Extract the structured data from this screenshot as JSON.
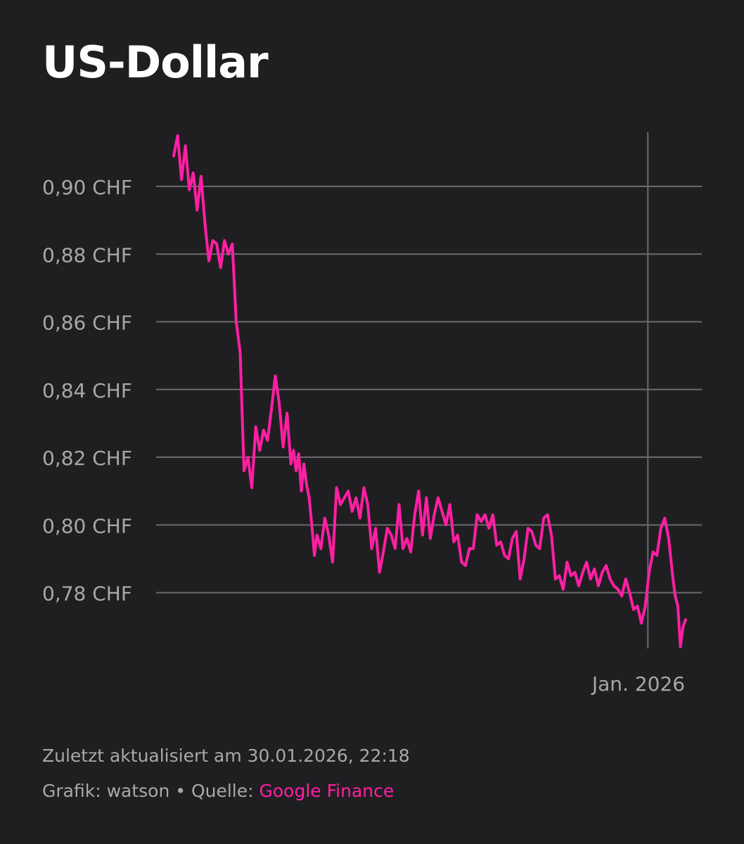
{
  "title": "US-Dollar",
  "footer": {
    "updated": "Zuletzt aktualisiert am 30.01.2026, 22:18",
    "credits_prefix": "Grafik: watson • Quelle: ",
    "source_link": "Google Finance"
  },
  "colors": {
    "background": "#1f1f21",
    "line": "#ff1fa3",
    "grid": "#6a6a6d",
    "muted_text": "#a8a8ab",
    "accent": "#ff1fa3"
  },
  "chart_data": {
    "type": "line",
    "title": "US-Dollar",
    "ylabel": "",
    "xlabel": "",
    "ylim": [
      0.7635,
      0.916
    ],
    "y_ticks": [
      0.9,
      0.88,
      0.86,
      0.84,
      0.82,
      0.8,
      0.78
    ],
    "y_tick_labels": [
      "0,90 CHF",
      "0,88 CHF",
      "0,86 CHF",
      "0,84 CHF",
      "0,82 CHF",
      "0,80 CHF",
      "0,78 CHF"
    ],
    "x_range": [
      "2025-01-02",
      "2026-01-30"
    ],
    "x_marker": {
      "date": "2026-01-01",
      "label": "Jan. 2026"
    },
    "grid": true,
    "series": [
      {
        "dates": [
          "2025-01-02",
          "2025-01-05",
          "2025-01-08",
          "2025-01-11",
          "2025-01-14",
          "2025-01-17",
          "2025-01-20",
          "2025-01-23",
          "2025-01-26",
          "2025-01-29",
          "2025-02-01",
          "2025-02-04",
          "2025-02-07",
          "2025-02-10",
          "2025-02-13",
          "2025-02-16",
          "2025-02-19",
          "2025-02-22",
          "2025-02-25",
          "2025-02-28",
          "2025-03-03",
          "2025-03-06",
          "2025-03-09",
          "2025-03-12",
          "2025-03-15",
          "2025-03-18",
          "2025-03-21",
          "2025-03-24",
          "2025-03-27",
          "2025-03-30",
          "2025-04-02",
          "2025-04-04",
          "2025-04-06",
          "2025-04-08",
          "2025-04-10",
          "2025-04-12",
          "2025-04-14",
          "2025-04-16",
          "2025-04-18",
          "2025-04-20",
          "2025-04-22",
          "2025-04-25",
          "2025-04-28",
          "2025-05-01",
          "2025-05-04",
          "2025-05-07",
          "2025-05-10",
          "2025-05-13",
          "2025-05-16",
          "2025-05-19",
          "2025-05-22",
          "2025-05-25",
          "2025-05-28",
          "2025-05-31",
          "2025-06-03",
          "2025-06-06",
          "2025-06-09",
          "2025-06-12",
          "2025-06-15",
          "2025-06-18",
          "2025-06-21",
          "2025-06-24",
          "2025-06-27",
          "2025-06-30",
          "2025-07-03",
          "2025-07-06",
          "2025-07-09",
          "2025-07-12",
          "2025-07-15",
          "2025-07-18",
          "2025-07-21",
          "2025-07-24",
          "2025-07-27",
          "2025-07-30",
          "2025-08-02",
          "2025-08-05",
          "2025-08-08",
          "2025-08-11",
          "2025-08-14",
          "2025-08-17",
          "2025-08-20",
          "2025-08-23",
          "2025-08-26",
          "2025-08-29",
          "2025-09-01",
          "2025-09-04",
          "2025-09-07",
          "2025-09-10",
          "2025-09-13",
          "2025-09-16",
          "2025-09-19",
          "2025-09-22",
          "2025-09-25",
          "2025-09-28",
          "2025-10-01",
          "2025-10-04",
          "2025-10-07",
          "2025-10-10",
          "2025-10-13",
          "2025-10-16",
          "2025-10-19",
          "2025-10-22",
          "2025-10-25",
          "2025-10-28",
          "2025-10-31",
          "2025-11-03",
          "2025-11-06",
          "2025-11-09",
          "2025-11-12",
          "2025-11-15",
          "2025-11-18",
          "2025-11-21",
          "2025-11-24",
          "2025-11-27",
          "2025-11-30",
          "2025-12-03",
          "2025-12-06",
          "2025-12-09",
          "2025-12-12",
          "2025-12-15",
          "2025-12-18",
          "2025-12-21",
          "2025-12-24",
          "2025-12-27",
          "2025-12-30",
          "2026-01-02",
          "2026-01-05",
          "2026-01-08",
          "2026-01-11",
          "2026-01-14",
          "2026-01-17",
          "2026-01-20",
          "2026-01-22",
          "2026-01-24",
          "2026-01-26",
          "2026-01-28",
          "2026-01-30"
        ],
        "values": [
          0.909,
          0.915,
          0.902,
          0.912,
          0.899,
          0.904,
          0.893,
          0.903,
          0.889,
          0.878,
          0.884,
          0.883,
          0.876,
          0.884,
          0.88,
          0.883,
          0.86,
          0.851,
          0.816,
          0.82,
          0.811,
          0.829,
          0.822,
          0.828,
          0.825,
          0.834,
          0.844,
          0.836,
          0.823,
          0.833,
          0.818,
          0.822,
          0.816,
          0.821,
          0.81,
          0.818,
          0.812,
          0.808,
          0.8,
          0.791,
          0.797,
          0.793,
          0.802,
          0.797,
          0.789,
          0.811,
          0.806,
          0.808,
          0.81,
          0.804,
          0.808,
          0.802,
          0.811,
          0.806,
          0.793,
          0.799,
          0.786,
          0.792,
          0.799,
          0.797,
          0.793,
          0.806,
          0.793,
          0.796,
          0.792,
          0.803,
          0.81,
          0.797,
          0.808,
          0.796,
          0.803,
          0.808,
          0.804,
          0.8,
          0.806,
          0.795,
          0.797,
          0.789,
          0.788,
          0.793,
          0.793,
          0.803,
          0.801,
          0.803,
          0.799,
          0.803,
          0.794,
          0.795,
          0.791,
          0.79,
          0.796,
          0.798,
          0.784,
          0.79,
          0.799,
          0.798,
          0.794,
          0.793,
          0.802,
          0.803,
          0.797,
          0.784,
          0.785,
          0.781,
          0.789,
          0.785,
          0.786,
          0.782,
          0.786,
          0.789,
          0.784,
          0.787,
          0.782,
          0.786,
          0.788,
          0.784,
          0.782,
          0.781,
          0.779,
          0.784,
          0.78,
          0.775,
          0.776,
          0.771,
          0.776,
          0.786,
          0.792,
          0.791,
          0.799,
          0.802,
          0.796,
          0.785,
          0.779,
          0.776,
          0.764,
          0.77,
          0.772
        ]
      }
    ]
  }
}
